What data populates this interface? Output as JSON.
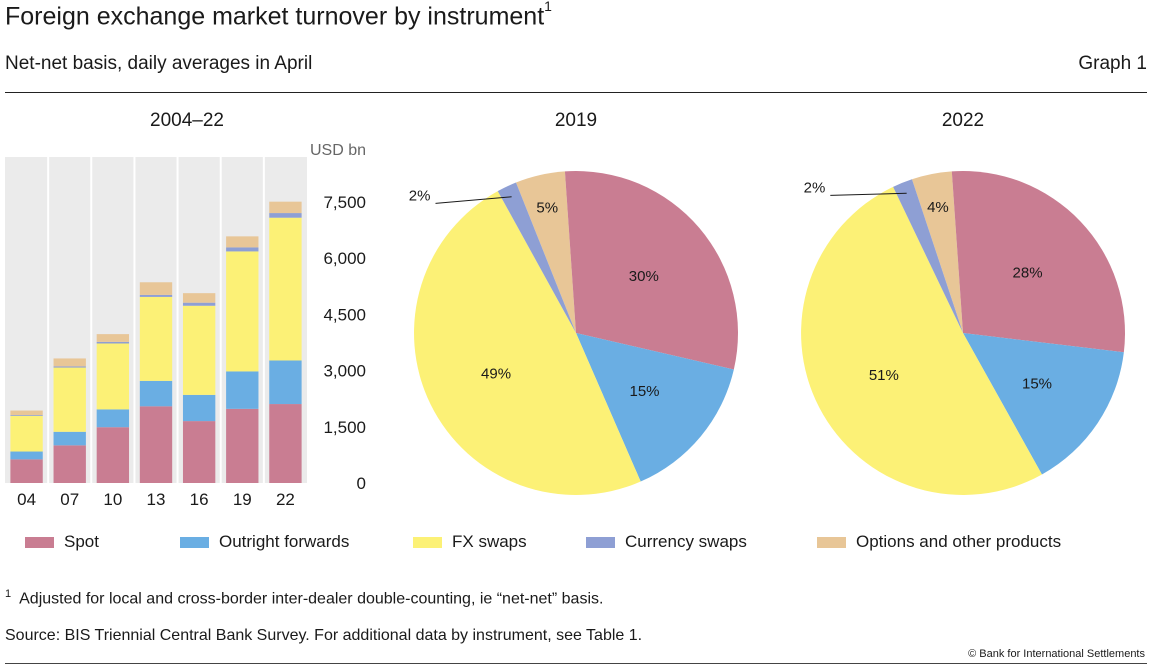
{
  "header": {
    "title": "Foreign exchange market turnover by instrument",
    "title_footnote_marker": "1",
    "subtitle": "Net-net basis, daily averages in April",
    "graph_number": "Graph 1"
  },
  "chart_data": [
    {
      "type": "bar",
      "stacked": true,
      "title": "2004–22",
      "unit_label": "USD bn",
      "categories": [
        "04",
        "07",
        "10",
        "13",
        "16",
        "19",
        "22"
      ],
      "ylim": [
        0,
        8700
      ],
      "yticks": [
        0,
        1500,
        3000,
        4500,
        6000,
        7500
      ],
      "ytick_labels": [
        "0",
        "1,500",
        "3,000",
        "4,500",
        "6,000",
        "7,500"
      ],
      "y_axis_position": "right",
      "grid": "vertical",
      "series": [
        {
          "name": "Spot",
          "color": "#c97d92",
          "values": [
            631,
            1005,
            1489,
            2047,
            1652,
            1979,
            2107
          ]
        },
        {
          "name": "Outright forwards",
          "color": "#6aaee3",
          "values": [
            209,
            362,
            475,
            679,
            700,
            999,
            1163
          ]
        },
        {
          "name": "FX swaps",
          "color": "#fcf176",
          "values": [
            954,
            1714,
            1759,
            2240,
            2378,
            3202,
            3810
          ]
        },
        {
          "name": "Currency swaps",
          "color": "#8e9fd4",
          "values": [
            21,
            31,
            43,
            54,
            82,
            108,
            124
          ]
        },
        {
          "name": "Options and other products",
          "color": "#e8c697",
          "values": [
            119,
            212,
            207,
            337,
            254,
            294,
            304
          ]
        }
      ]
    },
    {
      "type": "pie",
      "title": "2019",
      "labels": [
        "Spot",
        "Outright forwards",
        "FX swaps",
        "Currency swaps",
        "Options and other products"
      ],
      "values": [
        30,
        15,
        49,
        2,
        5
      ],
      "value_labels": [
        "30%",
        "15%",
        "49%",
        "2%",
        "5%"
      ],
      "colors": [
        "#c97d92",
        "#6aaee3",
        "#fcf176",
        "#8e9fd4",
        "#e8c697"
      ]
    },
    {
      "type": "pie",
      "title": "2022",
      "labels": [
        "Spot",
        "Outright forwards",
        "FX swaps",
        "Currency swaps",
        "Options and other products"
      ],
      "values": [
        28,
        15,
        51,
        2,
        4
      ],
      "value_labels": [
        "28%",
        "15%",
        "51%",
        "2%",
        "4%"
      ],
      "colors": [
        "#c97d92",
        "#6aaee3",
        "#fcf176",
        "#8e9fd4",
        "#e8c697"
      ]
    }
  ],
  "legend": [
    {
      "label": "Spot",
      "color": "#c97d92"
    },
    {
      "label": "Outright forwards",
      "color": "#6aaee3"
    },
    {
      "label": "FX swaps",
      "color": "#fcf176"
    },
    {
      "label": "Currency swaps",
      "color": "#8e9fd4"
    },
    {
      "label": "Options and other products",
      "color": "#e8c697"
    }
  ],
  "footer": {
    "footnote_marker": "1",
    "footnote": "Adjusted for local and cross-border inter-dealer double-counting, ie “net-net” basis.",
    "source": "Source: BIS Triennial Central Bank Survey. For additional data by instrument, see Table 1.",
    "copyright": "© Bank for International Settlements"
  }
}
